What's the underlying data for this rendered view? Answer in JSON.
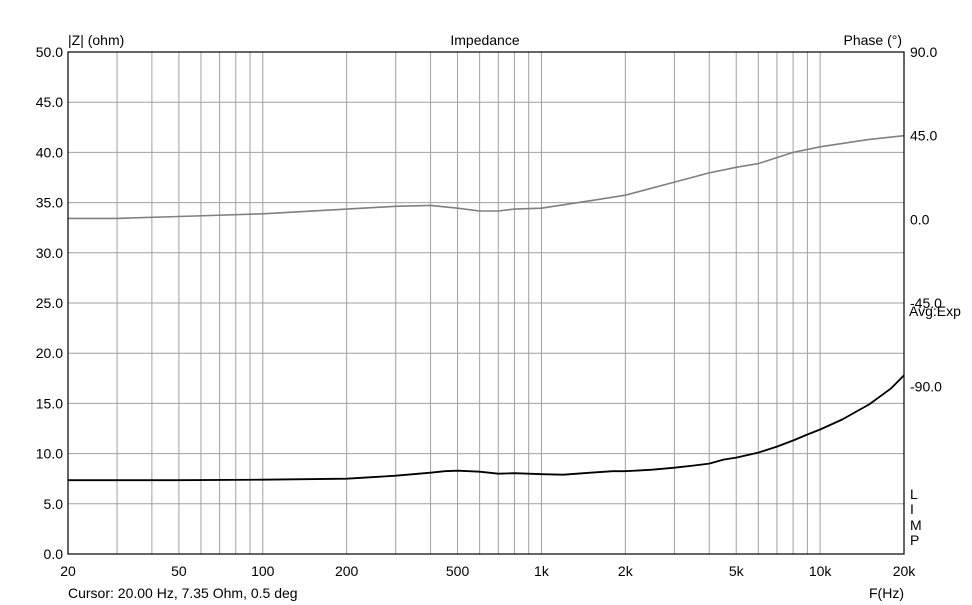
{
  "chart_data": {
    "type": "line",
    "title": "Impedance",
    "y_left_label": "|Z| (ohm)",
    "y_right_label": "Phase (°)",
    "xlabel": "F(Hz)",
    "x_scale": "log",
    "xlim": [
      20,
      20000
    ],
    "ylim_left": [
      0,
      50
    ],
    "ylim_right": [
      -180,
      90
    ],
    "grid": true,
    "x_ticks": [
      {
        "value": 20,
        "label": "20"
      },
      {
        "value": 50,
        "label": "50"
      },
      {
        "value": 100,
        "label": "100"
      },
      {
        "value": 200,
        "label": "200"
      },
      {
        "value": 500,
        "label": "500"
      },
      {
        "value": 1000,
        "label": "1k"
      },
      {
        "value": 2000,
        "label": "2k"
      },
      {
        "value": 5000,
        "label": "5k"
      },
      {
        "value": 10000,
        "label": "10k"
      },
      {
        "value": 20000,
        "label": "20k"
      }
    ],
    "y_left_ticks": [
      {
        "value": 0,
        "label": "0.0"
      },
      {
        "value": 5,
        "label": "5.0"
      },
      {
        "value": 10,
        "label": "10.0"
      },
      {
        "value": 15,
        "label": "15.0"
      },
      {
        "value": 20,
        "label": "20.0"
      },
      {
        "value": 25,
        "label": "25.0"
      },
      {
        "value": 30,
        "label": "30.0"
      },
      {
        "value": 35,
        "label": "35.0"
      },
      {
        "value": 40,
        "label": "40.0"
      },
      {
        "value": 45,
        "label": "45.0"
      },
      {
        "value": 50,
        "label": "50.0"
      }
    ],
    "y_right_ticks": [
      {
        "value": 90,
        "label": "90.0"
      },
      {
        "value": 45,
        "label": "45.0"
      },
      {
        "value": 0,
        "label": "0.0"
      },
      {
        "value": -45,
        "label": "-45.0"
      },
      {
        "value": -90,
        "label": "-90.0"
      }
    ],
    "series": [
      {
        "key": "impedance",
        "axis": "left",
        "color": "#000000",
        "x": [
          20,
          50,
          100,
          200,
          300,
          400,
          450,
          500,
          550,
          600,
          700,
          800,
          900,
          1000,
          1200,
          1500,
          1800,
          2000,
          2500,
          3000,
          3500,
          4000,
          4500,
          5000,
          6000,
          7000,
          8000,
          9000,
          10000,
          12000,
          15000,
          18000,
          20000
        ],
        "y": [
          7.35,
          7.35,
          7.4,
          7.5,
          7.8,
          8.1,
          8.25,
          8.3,
          8.25,
          8.2,
          8.0,
          8.05,
          8.0,
          7.95,
          7.9,
          8.1,
          8.25,
          8.25,
          8.4,
          8.6,
          8.8,
          9.0,
          9.4,
          9.6,
          10.1,
          10.7,
          11.3,
          11.9,
          12.4,
          13.4,
          14.9,
          16.5,
          17.8
        ]
      },
      {
        "key": "phase",
        "axis": "right",
        "color": "#808080",
        "x": [
          20,
          30,
          50,
          100,
          200,
          300,
          400,
          500,
          600,
          700,
          800,
          1000,
          1500,
          2000,
          3000,
          4000,
          5000,
          6000,
          8000,
          10000,
          15000,
          20000
        ],
        "y": [
          0.5,
          0.5,
          1.5,
          3.0,
          5.5,
          7.0,
          7.5,
          6.0,
          4.5,
          4.5,
          5.5,
          6.0,
          10.0,
          13.0,
          20.0,
          25.0,
          28.0,
          30.0,
          36.0,
          39.0,
          43.0,
          45.0
        ]
      }
    ],
    "right_annotation": "Avg:Exp",
    "limp_label": [
      "L",
      "I",
      "M",
      "P"
    ],
    "cursor_readout": "Cursor: 20.00 Hz, 7.35 Ohm, 0.5 deg"
  }
}
